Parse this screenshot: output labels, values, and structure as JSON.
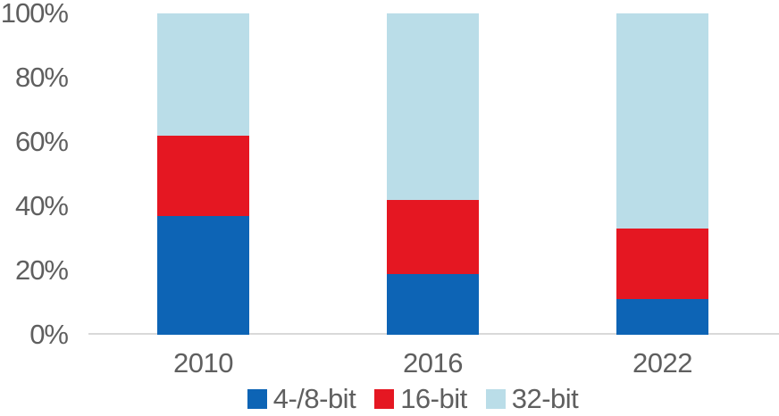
{
  "chart_data": {
    "type": "bar",
    "stacked": true,
    "percent": true,
    "title": "",
    "categories": [
      "2010",
      "2016",
      "2022"
    ],
    "series": [
      {
        "name": "4-/8-bit",
        "color": "#0d64b5",
        "values": [
          37,
          19,
          11
        ]
      },
      {
        "name": "16-bit",
        "color": "#e51722",
        "values": [
          25,
          23,
          22
        ]
      },
      {
        "name": "32-bit",
        "color": "#badde8",
        "values": [
          38,
          58,
          67
        ]
      }
    ],
    "ylim": [
      0,
      100
    ],
    "yticks": [
      0,
      20,
      40,
      60,
      80,
      100
    ],
    "ytick_labels": [
      "0%",
      "20%",
      "40%",
      "60%",
      "80%",
      "100%"
    ],
    "xlabel": "",
    "ylabel": "",
    "grid": false,
    "legend_position": "bottom"
  },
  "colors": {
    "background": "#ffffff",
    "text": "#5f5f5f",
    "axis_line": "#d9d9d9"
  }
}
